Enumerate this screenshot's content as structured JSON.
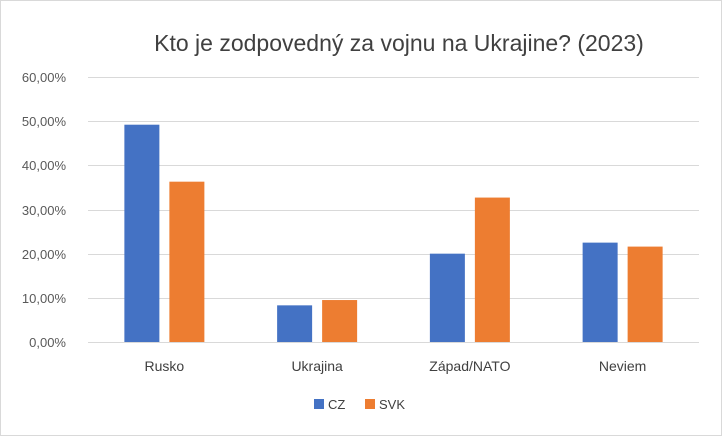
{
  "chart_data": {
    "type": "bar",
    "title": "Kto je zodpovedný za vojnu na Ukrajine? (2023)",
    "xlabel": "",
    "ylabel": "",
    "categories": [
      "Rusko",
      "Ukrajina",
      "Západ/NATO",
      "Neviem"
    ],
    "series": [
      {
        "name": "CZ",
        "values": [
          49.2,
          8.3,
          20.0,
          22.5
        ],
        "color": "#4472C4"
      },
      {
        "name": "SVK",
        "values": [
          36.3,
          9.5,
          32.7,
          21.6
        ],
        "color": "#ED7D31"
      }
    ],
    "ylim": [
      0,
      60
    ],
    "yticks": [
      0,
      10,
      20,
      30,
      40,
      50,
      60
    ],
    "ytick_labels": [
      "0,00%",
      "10,00%",
      "20,00%",
      "30,00%",
      "40,00%",
      "50,00%",
      "60,00%"
    ],
    "grid": true,
    "legend_position": "bottom"
  }
}
